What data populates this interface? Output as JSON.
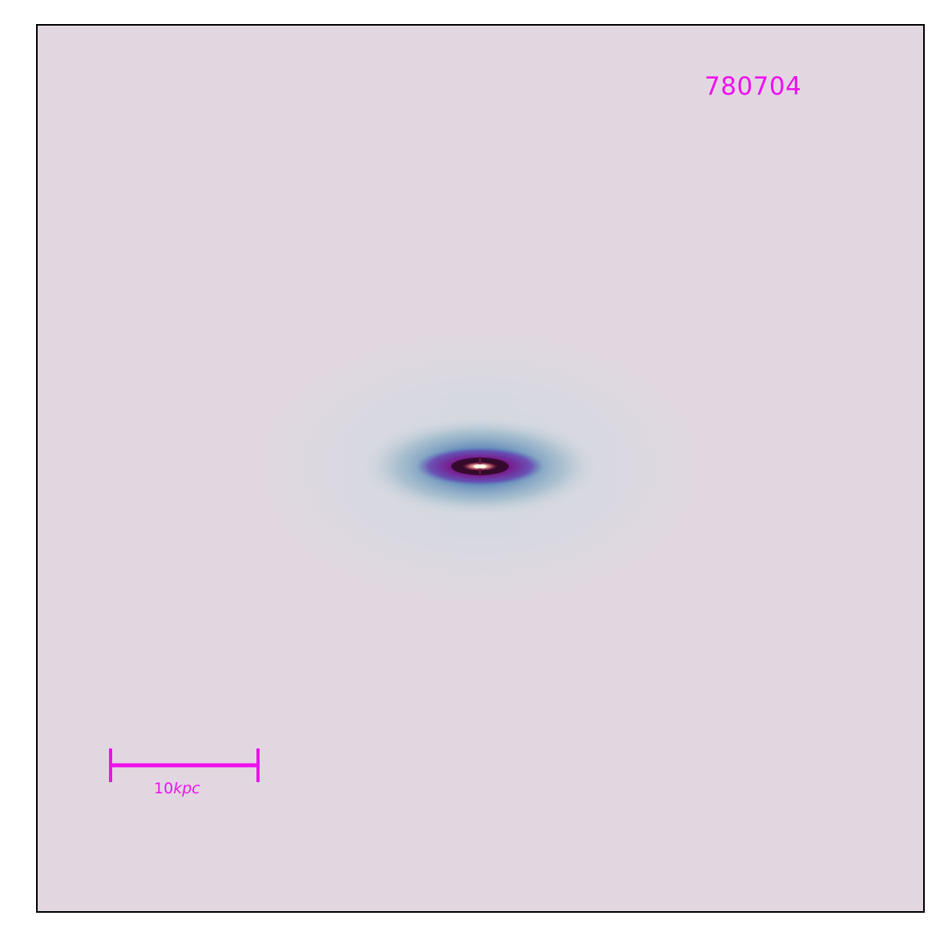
{
  "object_id": "780704",
  "scale_bar": {
    "value": "10",
    "unit": "kpc"
  },
  "colors": {
    "background": "#e2d7e1",
    "annotation": "#ee11ee",
    "frame": "#000000"
  }
}
